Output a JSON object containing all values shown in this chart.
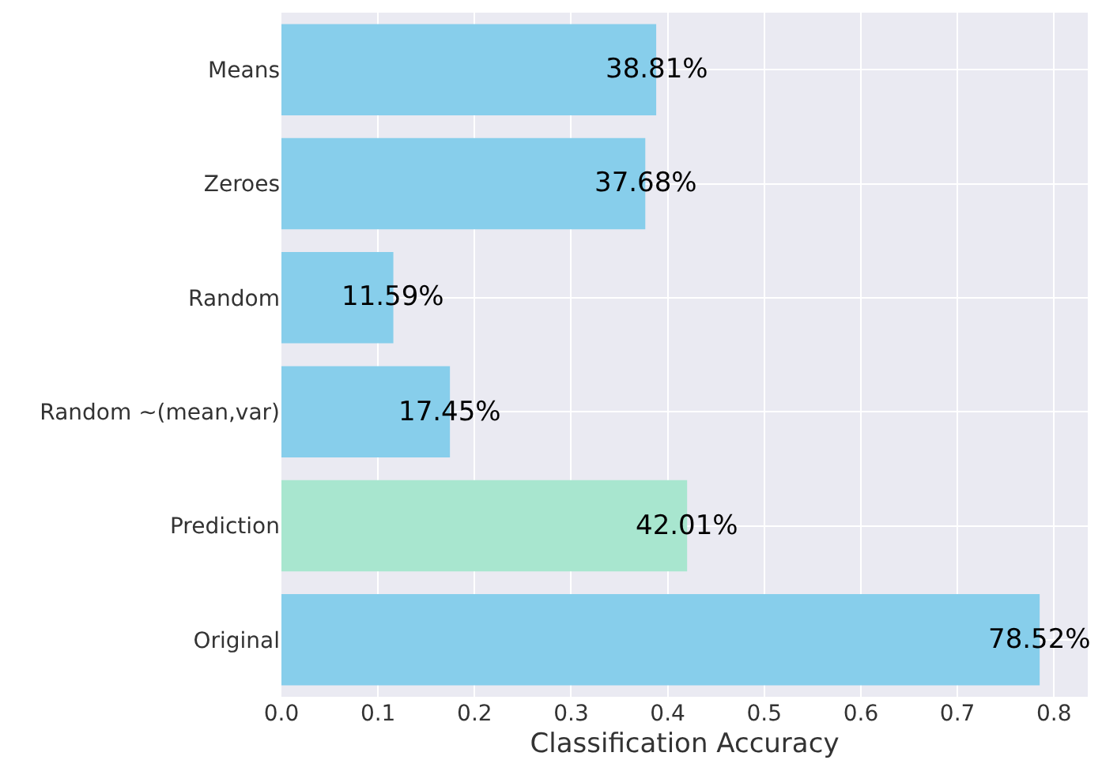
{
  "chart_data": {
    "type": "bar",
    "orientation": "horizontal",
    "xlabel": "Classification Accuracy",
    "categories": [
      "Means",
      "Zeroes",
      "Random",
      "Random ~(mean,var)",
      "Prediction",
      "Original"
    ],
    "values": [
      0.3881,
      0.3768,
      0.1159,
      0.1745,
      0.4201,
      0.7852
    ],
    "colors": [
      "#87ceeb",
      "#87ceeb",
      "#87ceeb",
      "#87ceeb",
      "#a8e6cf",
      "#87ceeb"
    ],
    "value_labels": [
      "38.81%",
      "37.68%",
      "11.59%",
      "17.45%",
      "42.01%",
      "78.52%"
    ],
    "xlim": [
      0,
      0.835
    ],
    "xticks": [
      {
        "value": 0,
        "label": "0.0"
      },
      {
        "value": 0.1,
        "label": "0.1"
      },
      {
        "value": 0.2,
        "label": "0.2"
      },
      {
        "value": 0.3,
        "label": "0.3"
      },
      {
        "value": 0.4,
        "label": "0.4"
      },
      {
        "value": 0.5,
        "label": "0.5"
      },
      {
        "value": 0.6,
        "label": "0.6"
      },
      {
        "value": 0.7,
        "label": "0.7"
      },
      {
        "value": 0.8,
        "label": "0.8"
      }
    ],
    "grid": true
  }
}
